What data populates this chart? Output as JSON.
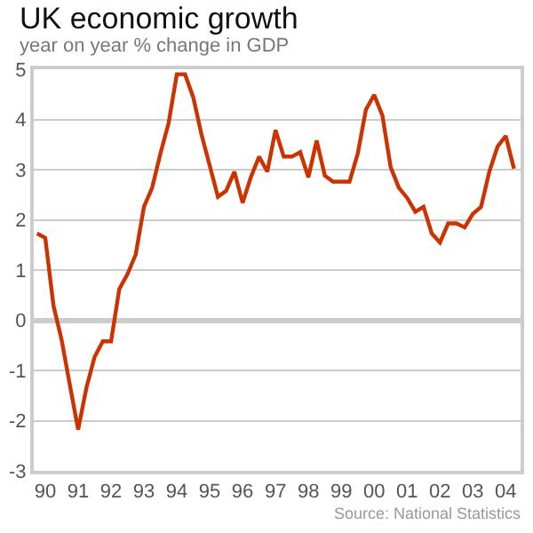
{
  "chart_data": {
    "type": "line",
    "title": "UK economic growth",
    "subtitle": "year on year % change in GDP",
    "categories": [
      null,
      "90",
      null,
      null,
      null,
      "91",
      null,
      null,
      null,
      "92",
      null,
      null,
      null,
      "93",
      null,
      null,
      null,
      "94",
      null,
      null,
      null,
      "95",
      null,
      null,
      null,
      "96",
      null,
      null,
      null,
      "97",
      null,
      null,
      null,
      "98",
      null,
      null,
      null,
      "99",
      null,
      null,
      null,
      "00",
      null,
      null,
      null,
      "01",
      null,
      null,
      null,
      "02",
      null,
      null,
      null,
      "03",
      null,
      null,
      null,
      "04",
      null
    ],
    "series": [
      {
        "color": "#cc3300",
        "values": [
          1.73,
          1.64,
          0.29,
          -0.4,
          -1.3,
          -2.18,
          -1.35,
          -0.73,
          -0.42,
          -0.42,
          0.62,
          0.92,
          1.31,
          2.26,
          2.64,
          3.32,
          3.93,
          4.9,
          4.9,
          4.44,
          3.7,
          3.08,
          2.46,
          2.58,
          2.96,
          2.34,
          2.85,
          3.26,
          2.96,
          3.79,
          3.26,
          3.26,
          3.35,
          2.85,
          3.58,
          2.88,
          2.76,
          2.76,
          2.76,
          3.32,
          4.2,
          4.49,
          4.08,
          3.05,
          2.64,
          2.44,
          2.16,
          2.26,
          1.73,
          1.55,
          1.93,
          1.93,
          1.85,
          2.12,
          2.26,
          2.96,
          3.46,
          3.67,
          3.02
        ]
      }
    ],
    "ylim": [
      -3,
      5
    ],
    "yticks": [
      -3,
      -2,
      -1,
      0,
      1,
      2,
      3,
      4,
      5
    ],
    "grid": "y",
    "marker": "none",
    "line_style": "solid",
    "annotations": [
      "Source: National Statistics"
    ]
  }
}
